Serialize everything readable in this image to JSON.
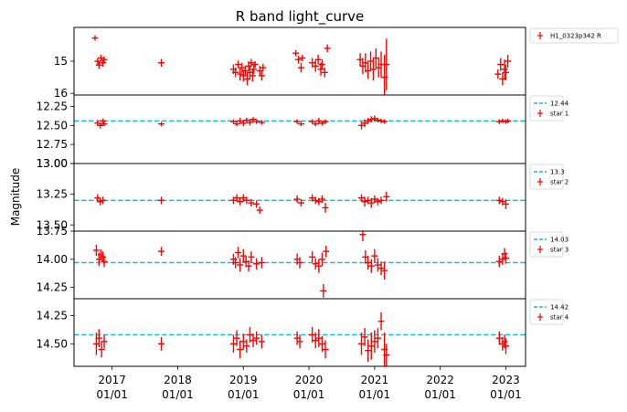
{
  "chart_data": {
    "type": "scatter",
    "title": "R band light_curve",
    "ylabel": "Magnitude",
    "x_ticks": [
      {
        "x": 2017.0,
        "label": [
          "2017",
          "01/01"
        ]
      },
      {
        "x": 2018.0,
        "label": [
          "2018",
          "01/01"
        ]
      },
      {
        "x": 2019.0,
        "label": [
          "2019",
          "01/01"
        ]
      },
      {
        "x": 2020.0,
        "label": [
          "2020",
          "01/01"
        ]
      },
      {
        "x": 2021.0,
        "label": [
          "2021",
          "01/01"
        ]
      },
      {
        "x": 2022.0,
        "label": [
          "2022",
          "01/01"
        ]
      },
      {
        "x": 2023.0,
        "label": [
          "2023",
          "01/01"
        ]
      }
    ],
    "xlim": [
      2016.42,
      2023.3
    ],
    "y_inverted": true,
    "colors": {
      "points": "#ff0000",
      "reference": "#17becf"
    },
    "panels": [
      {
        "name": "H1_0323p342 R",
        "ylim": [
          16.05,
          13.95
        ],
        "yticks": [
          {
            "v": 15,
            "label": "15"
          },
          {
            "v": 16,
            "label": "16"
          }
        ],
        "points": [
          [
            2016.74,
            14.28,
            0.08
          ],
          [
            2016.78,
            15.0,
            0.1
          ],
          [
            2016.8,
            15.12,
            0.12
          ],
          [
            2016.83,
            14.9,
            0.1
          ],
          [
            2016.86,
            15.05,
            0.12
          ],
          [
            2016.88,
            14.95,
            0.1
          ],
          [
            2017.75,
            15.05,
            0.12
          ],
          [
            2018.85,
            15.25,
            0.15
          ],
          [
            2018.88,
            15.35,
            0.15
          ],
          [
            2018.92,
            15.1,
            0.12
          ],
          [
            2018.95,
            15.4,
            0.2
          ],
          [
            2018.98,
            15.2,
            0.15
          ],
          [
            2019.0,
            15.45,
            0.18
          ],
          [
            2019.03,
            15.3,
            0.15
          ],
          [
            2019.06,
            15.55,
            0.2
          ],
          [
            2019.08,
            15.15,
            0.15
          ],
          [
            2019.1,
            15.35,
            0.2
          ],
          [
            2019.12,
            15.05,
            0.12
          ],
          [
            2019.14,
            15.45,
            0.18
          ],
          [
            2019.16,
            15.25,
            0.15
          ],
          [
            2019.18,
            15.1,
            0.1
          ],
          [
            2019.25,
            15.3,
            0.15
          ],
          [
            2019.28,
            15.45,
            0.15
          ],
          [
            2019.3,
            15.2,
            0.12
          ],
          [
            2019.8,
            14.75,
            0.1
          ],
          [
            2019.84,
            14.95,
            0.12
          ],
          [
            2019.88,
            15.2,
            0.15
          ],
          [
            2019.9,
            14.9,
            0.1
          ],
          [
            2020.05,
            15.05,
            0.15
          ],
          [
            2020.1,
            15.15,
            0.18
          ],
          [
            2020.14,
            14.95,
            0.15
          ],
          [
            2020.18,
            15.25,
            0.2
          ],
          [
            2020.2,
            15.1,
            0.15
          ],
          [
            2020.24,
            15.35,
            0.15
          ],
          [
            2020.28,
            14.6,
            0.12
          ],
          [
            2020.78,
            14.95,
            0.2
          ],
          [
            2020.82,
            15.15,
            0.25
          ],
          [
            2020.86,
            15.05,
            0.3
          ],
          [
            2020.9,
            15.3,
            0.25
          ],
          [
            2020.94,
            15.0,
            0.3
          ],
          [
            2020.98,
            15.25,
            0.35
          ],
          [
            2021.02,
            14.9,
            0.3
          ],
          [
            2021.06,
            15.2,
            0.3
          ],
          [
            2021.1,
            15.1,
            0.4
          ],
          [
            2021.15,
            15.5,
            0.7
          ],
          [
            2021.18,
            15.1,
            0.8
          ],
          [
            2022.88,
            15.4,
            0.15
          ],
          [
            2022.92,
            15.1,
            0.2
          ],
          [
            2022.95,
            15.55,
            0.2
          ],
          [
            2022.98,
            15.25,
            0.3
          ],
          [
            2023.0,
            15.35,
            0.25
          ],
          [
            2023.03,
            15.0,
            0.2
          ]
        ]
      },
      {
        "name": "star 1",
        "ref_value": 12.44,
        "ref_label": "12.44",
        "ylim": [
          13.0,
          12.1
        ],
        "yticks": [
          {
            "v": 12.25,
            "label": "12.25"
          },
          {
            "v": 12.5,
            "label": "12.50"
          },
          {
            "v": 12.75,
            "label": "12.75"
          },
          {
            "v": 13.0,
            "label": "13.00"
          }
        ],
        "points": [
          [
            2016.78,
            12.47,
            0.04
          ],
          [
            2016.82,
            12.5,
            0.04
          ],
          [
            2016.86,
            12.44,
            0.03
          ],
          [
            2016.88,
            12.48,
            0.03
          ],
          [
            2017.75,
            12.48,
            0.03
          ],
          [
            2018.85,
            12.45,
            0.03
          ],
          [
            2018.9,
            12.48,
            0.03
          ],
          [
            2018.95,
            12.44,
            0.04
          ],
          [
            2019.0,
            12.47,
            0.04
          ],
          [
            2019.05,
            12.43,
            0.03
          ],
          [
            2019.1,
            12.46,
            0.04
          ],
          [
            2019.15,
            12.42,
            0.03
          ],
          [
            2019.2,
            12.45,
            0.03
          ],
          [
            2019.28,
            12.46,
            0.03
          ],
          [
            2019.82,
            12.45,
            0.03
          ],
          [
            2019.88,
            12.48,
            0.03
          ],
          [
            2020.05,
            12.45,
            0.03
          ],
          [
            2020.1,
            12.48,
            0.03
          ],
          [
            2020.15,
            12.44,
            0.04
          ],
          [
            2020.2,
            12.47,
            0.03
          ],
          [
            2020.25,
            12.45,
            0.03
          ],
          [
            2020.8,
            12.5,
            0.05
          ],
          [
            2020.85,
            12.47,
            0.05
          ],
          [
            2020.9,
            12.44,
            0.04
          ],
          [
            2020.95,
            12.42,
            0.04
          ],
          [
            2021.0,
            12.41,
            0.04
          ],
          [
            2021.05,
            12.43,
            0.03
          ],
          [
            2021.1,
            12.44,
            0.03
          ],
          [
            2021.15,
            12.45,
            0.03
          ],
          [
            2022.9,
            12.45,
            0.03
          ],
          [
            2022.95,
            12.44,
            0.03
          ],
          [
            2023.0,
            12.45,
            0.03
          ],
          [
            2023.03,
            12.44,
            0.03
          ]
        ]
      },
      {
        "name": "star 2",
        "ref_value": 13.3,
        "ref_label": "13.3",
        "ylim": [
          13.55,
          13.0
        ],
        "yticks": [
          {
            "v": 13.0,
            "label": "13.00"
          },
          {
            "v": 13.25,
            "label": "13.25"
          },
          {
            "v": 13.5,
            "label": "13.50"
          }
        ],
        "points": [
          [
            2016.78,
            13.28,
            0.03
          ],
          [
            2016.82,
            13.31,
            0.03
          ],
          [
            2016.86,
            13.3,
            0.03
          ],
          [
            2017.75,
            13.3,
            0.03
          ],
          [
            2018.85,
            13.3,
            0.03
          ],
          [
            2018.9,
            13.28,
            0.03
          ],
          [
            2018.95,
            13.31,
            0.03
          ],
          [
            2019.0,
            13.28,
            0.03
          ],
          [
            2019.05,
            13.3,
            0.03
          ],
          [
            2019.12,
            13.32,
            0.03
          ],
          [
            2019.2,
            13.33,
            0.03
          ],
          [
            2019.25,
            13.38,
            0.03
          ],
          [
            2019.82,
            13.29,
            0.03
          ],
          [
            2019.88,
            13.32,
            0.03
          ],
          [
            2020.05,
            13.28,
            0.03
          ],
          [
            2020.1,
            13.3,
            0.03
          ],
          [
            2020.15,
            13.31,
            0.03
          ],
          [
            2020.2,
            13.29,
            0.03
          ],
          [
            2020.25,
            13.36,
            0.04
          ],
          [
            2020.8,
            13.28,
            0.03
          ],
          [
            2020.85,
            13.31,
            0.04
          ],
          [
            2020.9,
            13.3,
            0.03
          ],
          [
            2020.95,
            13.32,
            0.04
          ],
          [
            2021.0,
            13.29,
            0.03
          ],
          [
            2021.05,
            13.31,
            0.03
          ],
          [
            2021.1,
            13.3,
            0.03
          ],
          [
            2021.18,
            13.27,
            0.04
          ],
          [
            2022.9,
            13.3,
            0.03
          ],
          [
            2022.95,
            13.31,
            0.03
          ],
          [
            2023.0,
            13.33,
            0.04
          ]
        ]
      },
      {
        "name": "star 3",
        "ref_value": 14.03,
        "ref_label": "14.03",
        "ylim": [
          14.35,
          13.75
        ],
        "yticks": [
          {
            "v": 13.75,
            "label": "13.75"
          },
          {
            "v": 14.0,
            "label": "14.00"
          },
          {
            "v": 14.25,
            "label": "14.25"
          }
        ],
        "points": [
          [
            2016.76,
            13.92,
            0.05
          ],
          [
            2016.8,
            14.0,
            0.06
          ],
          [
            2016.83,
            13.96,
            0.05
          ],
          [
            2016.86,
            13.98,
            0.05
          ],
          [
            2016.88,
            14.02,
            0.05
          ],
          [
            2017.75,
            13.93,
            0.04
          ],
          [
            2018.85,
            14.0,
            0.05
          ],
          [
            2018.88,
            14.03,
            0.05
          ],
          [
            2018.92,
            13.94,
            0.05
          ],
          [
            2018.95,
            14.05,
            0.06
          ],
          [
            2019.0,
            13.97,
            0.06
          ],
          [
            2019.04,
            14.02,
            0.05
          ],
          [
            2019.08,
            14.06,
            0.05
          ],
          [
            2019.12,
            13.98,
            0.05
          ],
          [
            2019.2,
            14.04,
            0.05
          ],
          [
            2019.28,
            14.03,
            0.05
          ],
          [
            2019.82,
            14.0,
            0.05
          ],
          [
            2019.86,
            14.03,
            0.05
          ],
          [
            2020.05,
            13.98,
            0.05
          ],
          [
            2020.1,
            14.04,
            0.05
          ],
          [
            2020.15,
            14.06,
            0.06
          ],
          [
            2020.2,
            14.0,
            0.06
          ],
          [
            2020.22,
            14.28,
            0.06
          ],
          [
            2020.26,
            13.93,
            0.05
          ],
          [
            2020.82,
            13.78,
            0.06
          ],
          [
            2020.86,
            13.98,
            0.06
          ],
          [
            2020.9,
            14.03,
            0.06
          ],
          [
            2020.95,
            14.06,
            0.06
          ],
          [
            2021.0,
            13.97,
            0.06
          ],
          [
            2021.05,
            14.05,
            0.06
          ],
          [
            2021.1,
            14.08,
            0.06
          ],
          [
            2021.15,
            14.1,
            0.08
          ],
          [
            2022.9,
            14.02,
            0.05
          ],
          [
            2022.95,
            14.0,
            0.05
          ],
          [
            2022.98,
            13.95,
            0.05
          ],
          [
            2023.0,
            13.99,
            0.05
          ]
        ]
      },
      {
        "name": "star 4",
        "ref_value": 14.42,
        "ref_label": "14.42",
        "ylim": [
          14.7,
          14.1
        ],
        "yticks": [
          {
            "v": 14.25,
            "label": "14.25"
          },
          {
            "v": 14.5,
            "label": "14.50"
          }
        ],
        "points": [
          [
            2016.76,
            14.5,
            0.1
          ],
          [
            2016.8,
            14.45,
            0.08
          ],
          [
            2016.84,
            14.55,
            0.07
          ],
          [
            2016.88,
            14.48,
            0.06
          ],
          [
            2017.75,
            14.5,
            0.06
          ],
          [
            2018.85,
            14.5,
            0.08
          ],
          [
            2018.9,
            14.45,
            0.07
          ],
          [
            2018.95,
            14.55,
            0.08
          ],
          [
            2019.0,
            14.48,
            0.07
          ],
          [
            2019.05,
            14.52,
            0.06
          ],
          [
            2019.1,
            14.42,
            0.07
          ],
          [
            2019.15,
            14.47,
            0.06
          ],
          [
            2019.2,
            14.45,
            0.06
          ],
          [
            2019.28,
            14.48,
            0.06
          ],
          [
            2019.82,
            14.45,
            0.06
          ],
          [
            2019.86,
            14.48,
            0.06
          ],
          [
            2020.05,
            14.42,
            0.07
          ],
          [
            2020.1,
            14.47,
            0.07
          ],
          [
            2020.15,
            14.45,
            0.08
          ],
          [
            2020.2,
            14.5,
            0.07
          ],
          [
            2020.25,
            14.55,
            0.08
          ],
          [
            2020.8,
            14.5,
            0.1
          ],
          [
            2020.85,
            14.44,
            0.08
          ],
          [
            2020.9,
            14.56,
            0.1
          ],
          [
            2020.95,
            14.52,
            0.12
          ],
          [
            2021.0,
            14.48,
            0.1
          ],
          [
            2021.05,
            14.45,
            0.09
          ],
          [
            2021.1,
            14.3,
            0.08
          ],
          [
            2021.15,
            14.55,
            0.15
          ],
          [
            2021.18,
            14.6,
            0.1
          ],
          [
            2022.9,
            14.45,
            0.06
          ],
          [
            2022.95,
            14.5,
            0.06
          ],
          [
            2022.98,
            14.48,
            0.06
          ],
          [
            2023.0,
            14.52,
            0.07
          ]
        ]
      }
    ]
  }
}
